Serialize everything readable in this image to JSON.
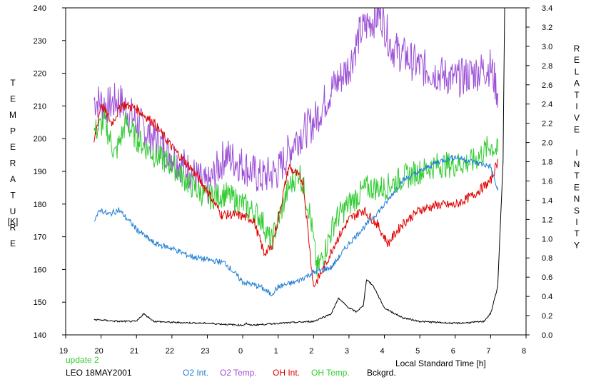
{
  "chart_data": {
    "type": "line",
    "title": "",
    "xlabel": "Local Standard Time [h]",
    "ylabel_left": "TEMPERATURE",
    "ylabel_left_unit": "[K]",
    "ylabel_right": "RELATIVE INTENSITY",
    "xlim": [
      19,
      32
    ],
    "ylim_left": [
      140,
      240
    ],
    "ylim_right": [
      0.0,
      3.4
    ],
    "x_ticks": [
      19,
      20,
      21,
      22,
      23,
      24,
      25,
      26,
      27,
      28,
      29,
      30,
      31,
      32
    ],
    "x_tick_labels": [
      "19",
      "20",
      "21",
      "22",
      "23",
      "0",
      "1",
      "2",
      "3",
      "4",
      "5",
      "6",
      "7",
      "8"
    ],
    "y_left_ticks": [
      140,
      150,
      160,
      170,
      180,
      190,
      200,
      210,
      220,
      230,
      240
    ],
    "y_left_tick_labels": [
      "140",
      "150",
      "160",
      "170",
      "180",
      "190",
      "200",
      "210",
      "220",
      "230",
      "240"
    ],
    "y_right_ticks": [
      0.0,
      0.2,
      0.4,
      0.6,
      0.8,
      1.0,
      1.2,
      1.4,
      1.6,
      1.8,
      2.0,
      2.2,
      2.4,
      2.6,
      2.8,
      3.0,
      3.2,
      3.4
    ],
    "y_right_tick_labels": [
      "0.0",
      "0.2",
      "0.4",
      "0.6",
      "0.8",
      "1.0",
      "1.2",
      "1.4",
      "1.6",
      "1.8",
      "2.0",
      "2.2",
      "2.4",
      "2.6",
      "2.8",
      "3.0",
      "3.2",
      "3.4"
    ],
    "grid": false,
    "series": [
      {
        "name": "O2 Temp.",
        "axis": "left",
        "color": "#9b4fd6",
        "jitter": 6,
        "x": [
          19.8,
          20.2,
          20.5,
          21.0,
          21.5,
          22.0,
          22.5,
          23.0,
          23.5,
          24.0,
          24.5,
          25.0,
          25.5,
          26.0,
          26.5,
          27.0,
          27.3,
          27.6,
          27.9,
          28.2,
          28.6,
          29.0,
          29.5,
          30.0,
          30.5,
          31.0,
          31.2
        ],
        "y": [
          212,
          210,
          212,
          205,
          200,
          195,
          190,
          185,
          195,
          192,
          188,
          190,
          200,
          205,
          215,
          222,
          232,
          236,
          238,
          228,
          225,
          222,
          220,
          218,
          220,
          222,
          214
        ]
      },
      {
        "name": "OH Temp.",
        "axis": "left",
        "color": "#33cc33",
        "jitter": 4,
        "x": [
          19.8,
          20.1,
          20.4,
          20.7,
          21.0,
          21.5,
          22.0,
          22.5,
          23.0,
          23.5,
          24.0,
          24.5,
          24.8,
          25.0,
          25.3,
          25.6,
          25.9,
          26.1,
          26.3,
          26.6,
          27.0,
          27.5,
          28.0,
          28.5,
          29.0,
          29.5,
          30.0,
          30.5,
          31.0,
          31.2
        ],
        "y": [
          202,
          205,
          195,
          205,
          200,
          195,
          192,
          186,
          182,
          183,
          180,
          176,
          168,
          175,
          185,
          190,
          177,
          160,
          165,
          175,
          180,
          185,
          185,
          188,
          190,
          192,
          192,
          193,
          198,
          196
        ]
      },
      {
        "name": "OH Int.",
        "axis": "right",
        "color": "#e00000",
        "jitter": 0.05,
        "x": [
          19.8,
          20.0,
          20.3,
          20.6,
          21.0,
          21.5,
          22.0,
          22.5,
          23.0,
          23.4,
          23.8,
          24.3,
          24.6,
          24.8,
          25.0,
          25.3,
          25.7,
          26.0,
          26.3,
          26.6,
          27.0,
          27.4,
          27.8,
          28.1,
          28.5,
          29.0,
          29.5,
          30.0,
          30.5,
          31.0,
          31.2
        ],
        "y": [
          2.0,
          2.4,
          2.2,
          2.4,
          2.35,
          2.2,
          1.95,
          1.75,
          1.5,
          1.25,
          1.25,
          1.2,
          0.85,
          0.9,
          1.2,
          1.75,
          1.6,
          0.5,
          0.7,
          0.95,
          1.2,
          1.3,
          1.15,
          0.95,
          1.15,
          1.3,
          1.35,
          1.35,
          1.45,
          1.6,
          1.8
        ]
      },
      {
        "name": "O2 Int.",
        "axis": "right",
        "color": "#1f7fd4",
        "jitter": 0.03,
        "x": [
          19.8,
          20.0,
          20.2,
          20.5,
          21.0,
          21.5,
          22.0,
          22.5,
          23.0,
          23.5,
          24.0,
          24.5,
          24.8,
          25.0,
          25.5,
          26.0,
          26.5,
          27.0,
          27.5,
          28.0,
          28.5,
          29.0,
          29.5,
          30.0,
          30.5,
          31.0,
          31.2
        ],
        "y": [
          1.2,
          1.3,
          1.25,
          1.3,
          1.1,
          0.95,
          0.9,
          0.82,
          0.78,
          0.75,
          0.55,
          0.5,
          0.42,
          0.5,
          0.55,
          0.65,
          0.7,
          0.95,
          1.15,
          1.35,
          1.6,
          1.7,
          1.8,
          1.85,
          1.8,
          1.75,
          1.5
        ]
      },
      {
        "name": "Bckgrd.",
        "axis": "right",
        "color": "#000000",
        "jitter": 0.008,
        "x": [
          19.8,
          20.5,
          21.0,
          21.2,
          21.5,
          22.0,
          23.0,
          24.0,
          24.1,
          24.2,
          25.0,
          26.0,
          26.5,
          26.7,
          27.0,
          27.2,
          27.4,
          27.5,
          27.7,
          28.0,
          28.5,
          29.0,
          30.0,
          30.5,
          30.8,
          31.0,
          31.2,
          31.35,
          31.4
        ],
        "y": [
          0.16,
          0.14,
          0.14,
          0.22,
          0.14,
          0.13,
          0.12,
          0.1,
          0.12,
          0.1,
          0.12,
          0.14,
          0.22,
          0.38,
          0.28,
          0.24,
          0.3,
          0.58,
          0.5,
          0.28,
          0.18,
          0.14,
          0.12,
          0.13,
          0.14,
          0.22,
          0.5,
          1.8,
          3.5
        ]
      }
    ]
  },
  "footer": {
    "update_text": "update 2",
    "station_text": "LEO 18MAY2001",
    "legend": [
      {
        "label": "O2 Int.",
        "color": "#1f7fd4"
      },
      {
        "label": "O2 Temp.",
        "color": "#9b4fd6"
      },
      {
        "label": "OH Int.",
        "color": "#e00000"
      },
      {
        "label": "OH Temp.",
        "color": "#33cc33"
      },
      {
        "label": "Bckgrd.",
        "color": "#000000"
      }
    ],
    "update_color": "#33cc33"
  }
}
